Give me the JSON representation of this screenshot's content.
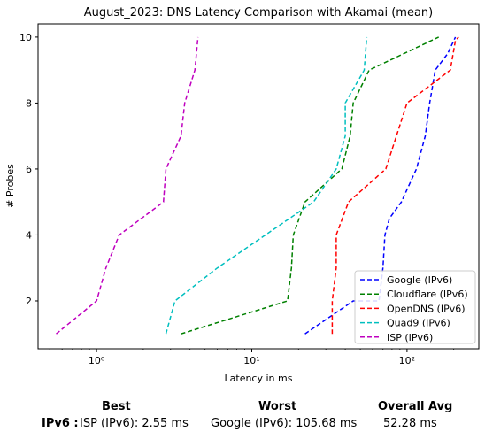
{
  "chart_data": {
    "type": "line",
    "title": "August_2023: DNS Latency Comparison with Akamai (mean)",
    "xlabel": "Latency in ms",
    "ylabel": "# Probes",
    "xscale": "log",
    "xlim": [
      0.42,
      290
    ],
    "ylim": [
      0.55,
      10.4
    ],
    "xticks": [
      1,
      10,
      100
    ],
    "xtick_labels": [
      "10⁰",
      "10¹",
      "10²"
    ],
    "yticks": [
      2,
      4,
      6,
      8,
      10
    ],
    "grid": false,
    "legend_position": "lower right",
    "series": [
      {
        "name": "Google (IPv6)",
        "color": "#0000ff",
        "x": [
          22,
          45,
          66,
          70,
          72,
          77,
          92,
          115,
          131,
          140,
          152,
          183,
          205
        ],
        "y": [
          1,
          2,
          2,
          3,
          4,
          4.5,
          5,
          6,
          7,
          8,
          9,
          9.5,
          10
        ]
      },
      {
        "name": "Cloudflare (IPv6)",
        "color": "#008000",
        "x": [
          3.5,
          17,
          18,
          18.5,
          22,
          38,
          43,
          45,
          57,
          160
        ],
        "y": [
          1,
          2,
          3,
          4,
          5,
          6,
          7,
          8,
          9,
          10
        ]
      },
      {
        "name": "OpenDNS (IPv6)",
        "color": "#ff0000",
        "x": [
          33,
          33,
          35,
          35,
          42,
          73,
          100,
          190,
          205,
          215
        ],
        "y": [
          1,
          2,
          3,
          4,
          5,
          6,
          8,
          9,
          9.9,
          10
        ]
      },
      {
        "name": "Quad9 (IPv6)",
        "color": "#00bfbf",
        "x": [
          2.8,
          3.2,
          6,
          25,
          35,
          40,
          40,
          53,
          55
        ],
        "y": [
          1,
          2,
          3,
          5,
          6,
          7,
          8,
          9,
          10
        ]
      },
      {
        "name": "ISP (IPv6)",
        "color": "#bf00bf",
        "x": [
          0.55,
          1.0,
          1.15,
          1.4,
          2.7,
          2.8,
          3.5,
          3.7,
          4.3,
          4.5
        ],
        "y": [
          1,
          2,
          3,
          4,
          5,
          6,
          7,
          8,
          9,
          10
        ]
      }
    ]
  },
  "summary": {
    "headers": {
      "best": "Best",
      "worst": "Worst",
      "avg": "Overall Avg"
    },
    "row_label": "IPv6 :",
    "best": "ISP (IPv6): 2.55 ms",
    "worst": "Google (IPv6): 105.68 ms",
    "avg": "52.28 ms"
  }
}
